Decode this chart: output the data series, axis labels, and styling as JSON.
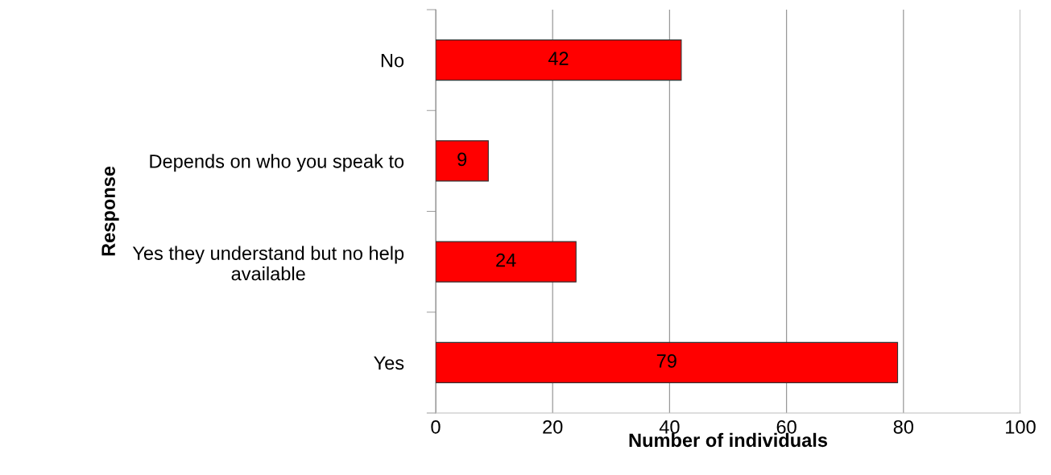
{
  "chart_data": {
    "type": "bar",
    "orientation": "horizontal",
    "categories": [
      "No",
      "Depends on who you speak to",
      "Yes they understand but no help\navailable",
      "Yes"
    ],
    "values": [
      42,
      9,
      24,
      79
    ],
    "color": "#ff0000",
    "xlim": [
      0,
      100
    ],
    "xticks": [
      0,
      20,
      40,
      60,
      80,
      100
    ],
    "xlabel": "Number of individuals",
    "ylabel": "Response",
    "grid": "x",
    "data_labels": true,
    "legend": false
  }
}
